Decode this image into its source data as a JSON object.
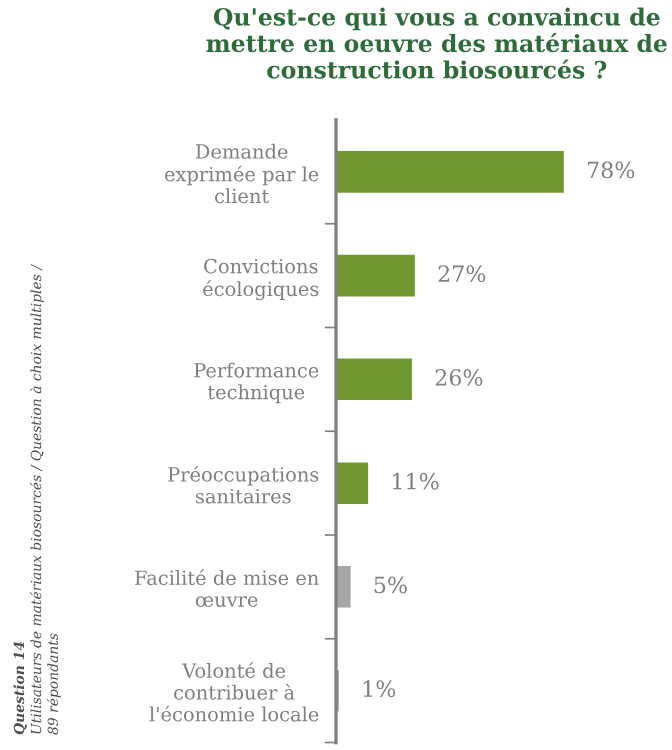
{
  "chart_data": {
    "type": "bar",
    "orientation": "horizontal",
    "title": "Qu'est-ce qui vous a convaincu de\nmettre en oeuvre des matériaux de\nconstruction biosourcés ?",
    "categories": [
      "Demande\nexprimée par le\nclient",
      "Convictions\nécologiques",
      "Performance\ntechnique",
      "Préoccupations\nsanitaires",
      "Facilité de mise en\nœuvre",
      "Volonté de\ncontribuer à\nl'économie locale"
    ],
    "values": [
      78,
      27,
      26,
      11,
      5,
      1
    ],
    "value_labels": [
      "78%",
      "27%",
      "26%",
      "11%",
      "5%",
      "1%"
    ],
    "colors": [
      "#70982e",
      "#70982e",
      "#70982e",
      "#70982e",
      "#a6a6a6",
      "#a6a6a6"
    ],
    "annotations": [
      "Question 14",
      "Utilisateurs de matériaux biosourcés / Question à choix multiples /",
      "89 répondants"
    ],
    "tick_labels": "y",
    "grid": false,
    "legend": false
  }
}
